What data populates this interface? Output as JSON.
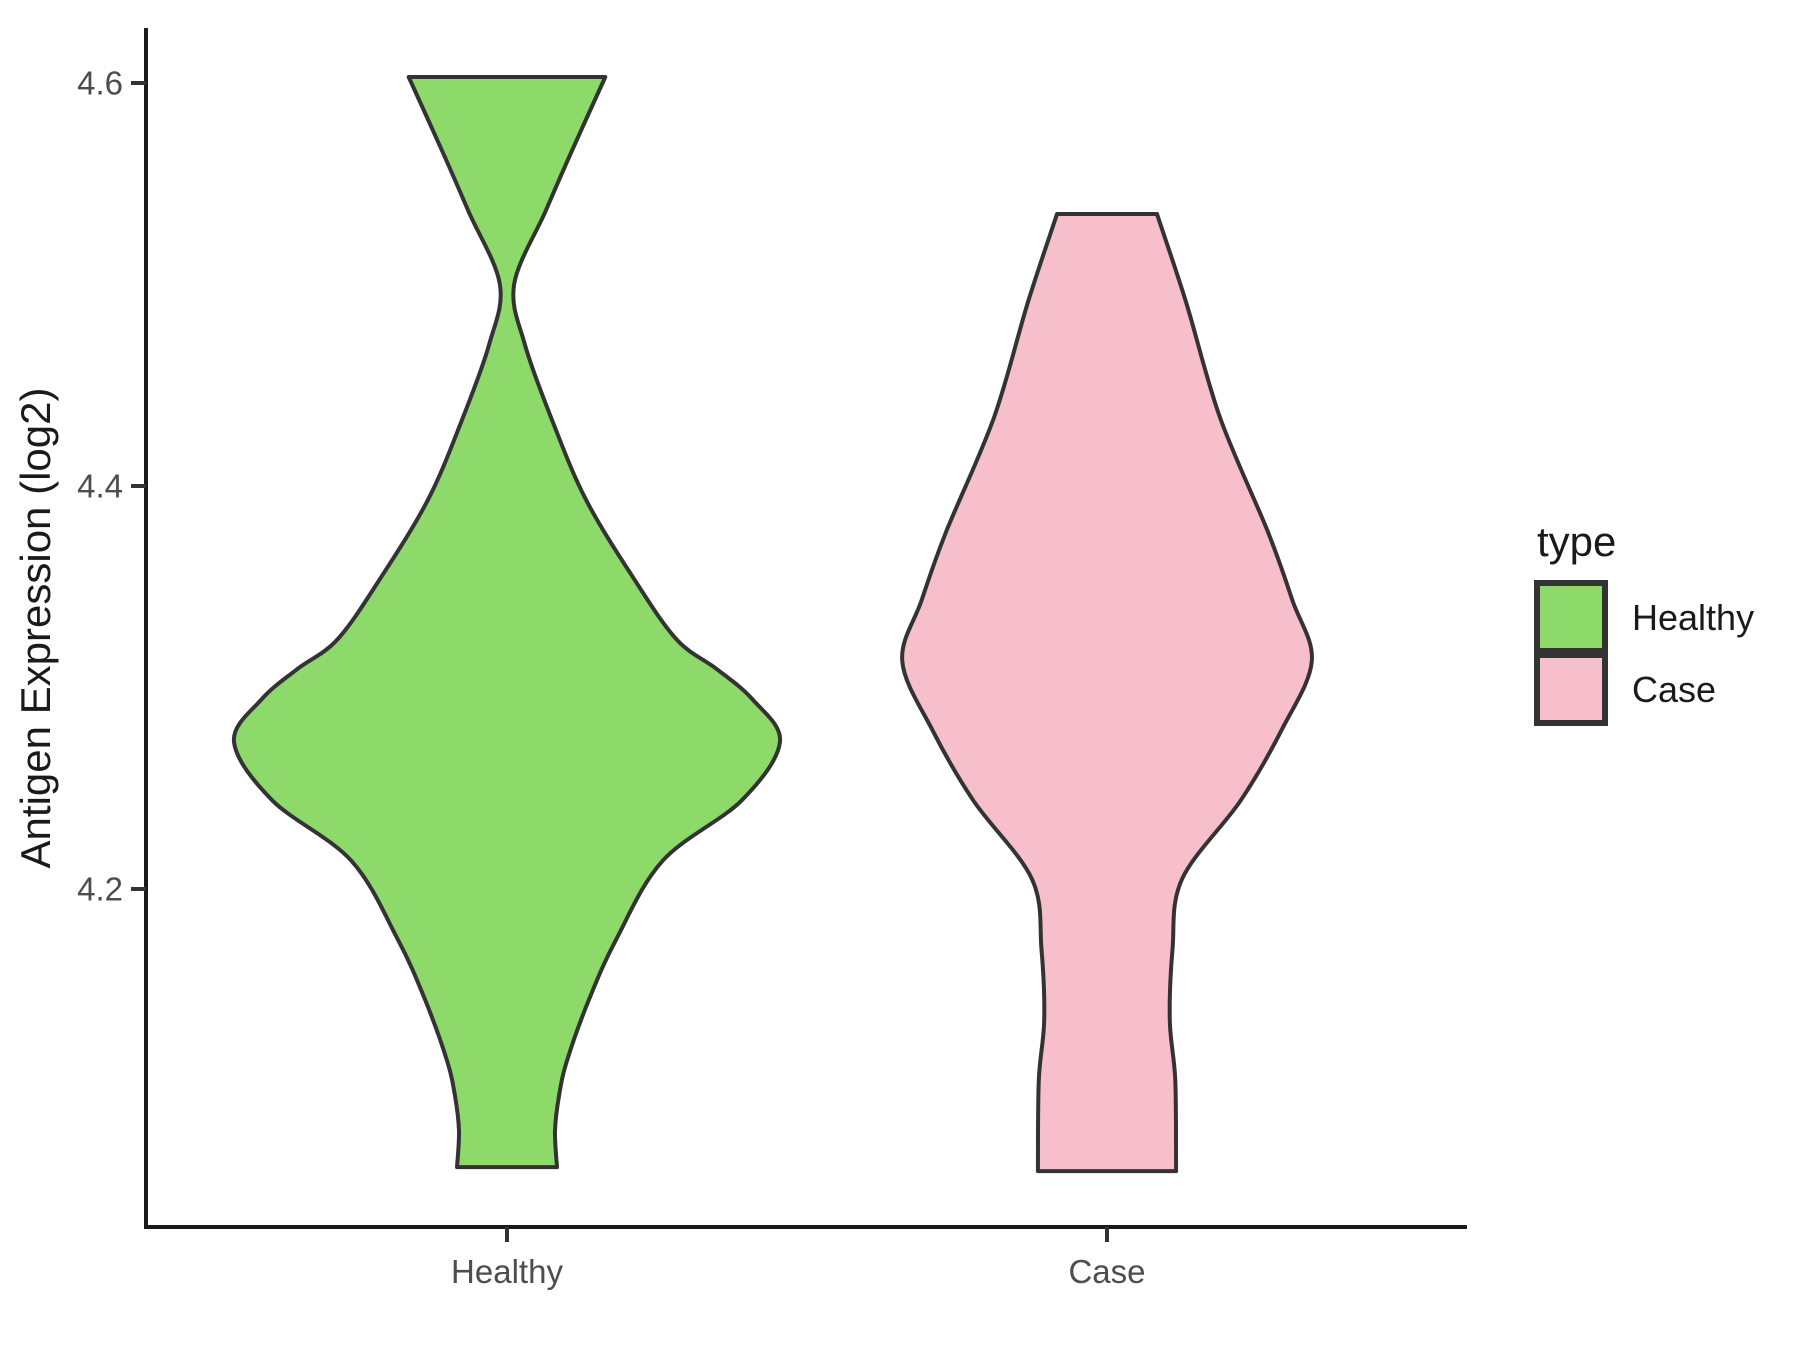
{
  "figure": {
    "background": "#ffffff"
  },
  "chart_data": {
    "type": "violin",
    "title": "",
    "xlabel": "",
    "categories": [
      "Healthy",
      "Case"
    ],
    "y_axis": {
      "title": "Antigen Expression (log2)",
      "tick_labels": [
        "4.6",
        "4.4",
        "4.2"
      ],
      "tick_values": [
        4.6,
        4.4,
        4.2
      ]
    },
    "ylim": [
      4.03,
      4.63
    ],
    "grid": "off",
    "legend": {
      "title": "type",
      "position": "right",
      "items": [
        {
          "label": "Healthy",
          "fill": "#8DD969"
        },
        {
          "label": "Case",
          "fill": "#F7BFCB"
        }
      ]
    },
    "series": [
      {
        "name": "Healthy",
        "fill": "#8DD969",
        "stroke": "#333333",
        "min": 4.062,
        "max": 4.603,
        "peak_density_at": 4.273,
        "profile": [
          [
            4.603,
            0.36
          ],
          [
            4.564,
            0.23
          ],
          [
            4.536,
            0.14
          ],
          [
            4.5,
            0.026
          ],
          [
            4.47,
            0.066
          ],
          [
            4.431,
            0.17
          ],
          [
            4.393,
            0.29
          ],
          [
            4.355,
            0.46
          ],
          [
            4.324,
            0.62
          ],
          [
            4.309,
            0.77
          ],
          [
            4.294,
            0.9
          ],
          [
            4.273,
            1.0
          ],
          [
            4.244,
            0.86
          ],
          [
            4.214,
            0.57
          ],
          [
            4.175,
            0.4
          ],
          [
            4.145,
            0.3
          ],
          [
            4.115,
            0.22
          ],
          [
            4.097,
            0.19
          ],
          [
            4.08,
            0.176
          ],
          [
            4.062,
            0.183
          ]
        ]
      },
      {
        "name": "Case",
        "fill": "#F7BFCB",
        "stroke": "#333333",
        "min": 4.06,
        "max": 4.535,
        "peak_density_at": 4.313,
        "profile": [
          [
            4.535,
            0.183
          ],
          [
            4.491,
            0.29
          ],
          [
            4.434,
            0.414
          ],
          [
            4.377,
            0.59
          ],
          [
            4.343,
            0.68
          ],
          [
            4.313,
            0.75
          ],
          [
            4.279,
            0.64
          ],
          [
            4.244,
            0.49
          ],
          [
            4.205,
            0.275
          ],
          [
            4.17,
            0.24
          ],
          [
            4.135,
            0.23
          ],
          [
            4.105,
            0.25
          ],
          [
            4.06,
            0.253
          ]
        ]
      }
    ]
  },
  "style": {
    "axis_line_color": "#1a1a1a",
    "tick_mark_color": "#333333",
    "tick_label_color": "#4d4d4d",
    "axis_title_color": "#1a1a1a",
    "legend_text_color": "#1a1a1a",
    "violin_stroke_color": "#333333"
  }
}
